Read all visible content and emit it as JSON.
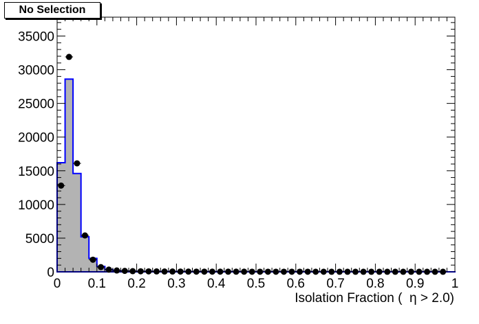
{
  "title": "No Selection",
  "chart_data": {
    "type": "histogram",
    "title": "No Selection",
    "xlabel": "Isolation Fraction (  η > 2.0)",
    "ylabel": "",
    "xlim": [
      0,
      1
    ],
    "ylim": [
      0,
      37800
    ],
    "x_ticks": [
      0,
      0.1,
      0.2,
      0.3,
      0.4,
      0.5,
      0.6,
      0.7,
      0.8,
      0.9,
      1
    ],
    "x_tick_labels": [
      "0",
      "0.1",
      "0.2",
      "0.3",
      "0.4",
      "0.5",
      "0.6",
      "0.7",
      "0.8",
      "0.9",
      "1"
    ],
    "y_ticks": [
      0,
      5000,
      10000,
      15000,
      20000,
      25000,
      30000,
      35000
    ],
    "y_tick_labels": [
      "0",
      "5000",
      "10000",
      "15000",
      "20000",
      "25000",
      "30000",
      "35000"
    ],
    "bin_width": 0.02,
    "grid": false,
    "series": [
      {
        "kind": "filled-step",
        "fill": "#b3b3b3",
        "line": "#0000ff",
        "values": [
          16200,
          28600,
          14600,
          5200,
          2000,
          800,
          350,
          180,
          120,
          90,
          70,
          60,
          50,
          45,
          40,
          35,
          30,
          30,
          25,
          25,
          20,
          20,
          20,
          18,
          18,
          16,
          16,
          15,
          15,
          14,
          14,
          13,
          13,
          12,
          12,
          12,
          11,
          11,
          10,
          10,
          10,
          9,
          9,
          9,
          8,
          8,
          8,
          8,
          8,
          5
        ]
      },
      {
        "kind": "markers",
        "color": "#000000",
        "values": [
          12800,
          31900,
          16100,
          5400,
          1800,
          700,
          330,
          200,
          140,
          100,
          80,
          70,
          60,
          50,
          45,
          40,
          35,
          30,
          30,
          25,
          25,
          22,
          20,
          20,
          18,
          18,
          16,
          16,
          15,
          15,
          14,
          14,
          13,
          13,
          12,
          12,
          11,
          11,
          10,
          10,
          10,
          9,
          9,
          9,
          8,
          8,
          8,
          8,
          8
        ]
      }
    ]
  }
}
